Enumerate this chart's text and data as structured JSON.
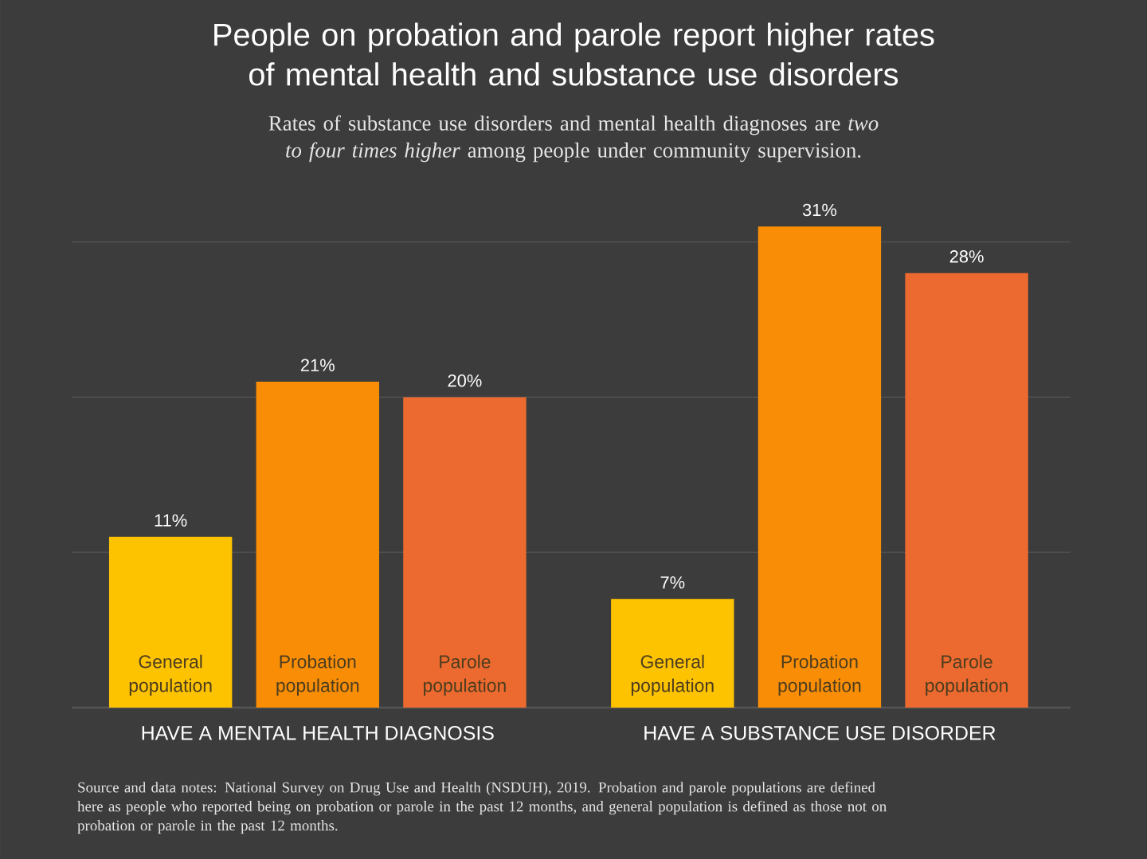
{
  "chart_data": {
    "type": "bar",
    "title": "People on probation and parole report higher rates of mental health and substance use disorders",
    "subtitle": "Rates of substance use disorders and mental health diagnoses are *two to four times higher* among people under community supervision.",
    "categories": [
      "HAVE A MENTAL HEALTH DIAGNOSIS",
      "HAVE A SUBSTANCE USE DISORDER"
    ],
    "series": [
      {
        "name": "General population",
        "color": "#fdc300",
        "values": [
          11,
          7
        ],
        "value_labels": [
          "11%",
          "7%"
        ]
      },
      {
        "name": "Probation population",
        "color": "#f98e06",
        "values": [
          21,
          31
        ],
        "value_labels": [
          "21%",
          "31%"
        ]
      },
      {
        "name": "Parole population",
        "color": "#ec6a2f",
        "values": [
          20,
          28
        ],
        "value_labels": [
          "20%",
          "28%"
        ]
      }
    ],
    "yticks": [
      {
        "value": 10,
        "label": null
      },
      {
        "value": 20,
        "label": null
      },
      {
        "value": 30,
        "label": null
      }
    ],
    "grid": "y",
    "tick_labels": "x",
    "annotations": [
      "Source and data notes: National Survey on Drug Use and Health (NSDUH), 2019. Probation and parole populations are defined here as people who reported being on probation or parole in the past 12 months, and general population is defined as those not on probation or parole in the past 12 months."
    ]
  }
}
